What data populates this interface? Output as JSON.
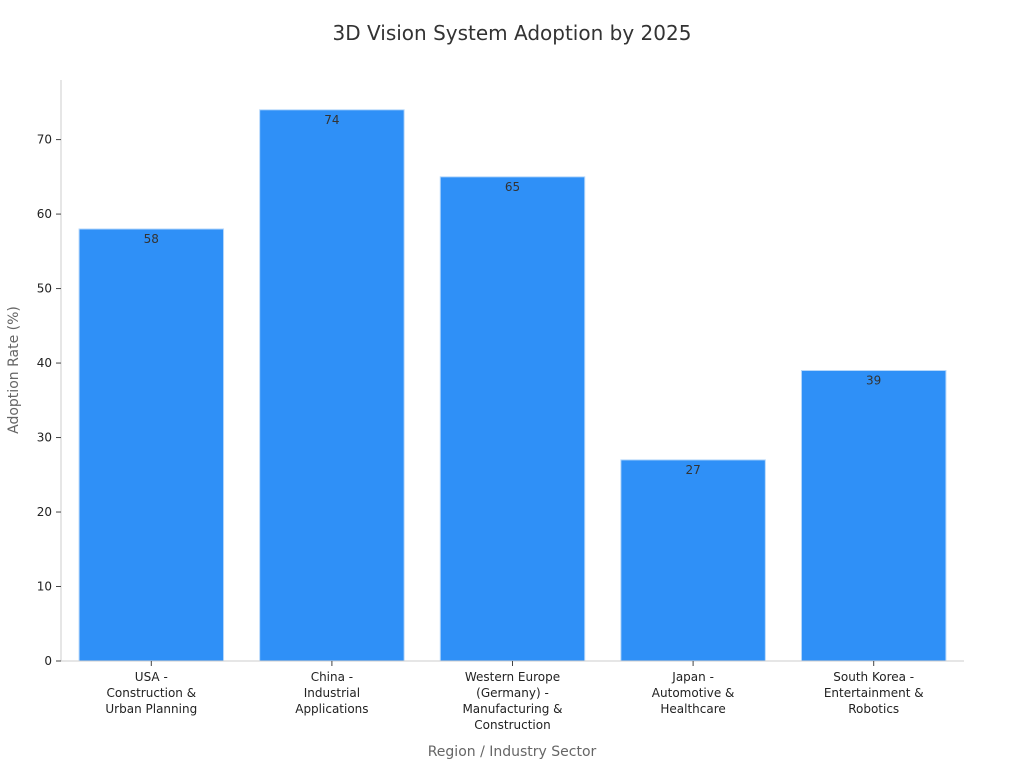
{
  "chart_data": {
    "type": "bar",
    "title": "3D Vision System Adoption by 2025",
    "xlabel": "Region / Industry Sector",
    "ylabel": "Adoption Rate (%)",
    "categories": [
      [
        "USA -",
        "Construction &",
        "Urban Planning"
      ],
      [
        "China -",
        "Industrial",
        "Applications"
      ],
      [
        "Western Europe",
        "(Germany) -",
        "Manufacturing &",
        "Construction"
      ],
      [
        "Japan -",
        "Automotive &",
        "Healthcare"
      ],
      [
        "South Korea -",
        "Entertainment &",
        "Robotics"
      ]
    ],
    "values": [
      58,
      74,
      65,
      27,
      39
    ],
    "data_labels": [
      "58",
      "74",
      "65",
      "27",
      "39"
    ],
    "yticks": [
      0,
      10,
      20,
      30,
      40,
      50,
      60,
      70
    ],
    "ylim": [
      0,
      78
    ],
    "grid": false,
    "legend": "none",
    "colors": {
      "bar": "#2f90f7",
      "bar_edge": "#b7d8fb",
      "axis": "#cccccc",
      "tick": "#444444"
    }
  }
}
